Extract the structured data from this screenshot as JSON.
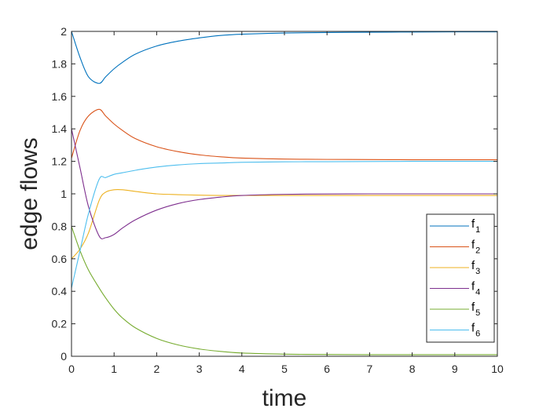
{
  "chart_data": {
    "type": "line",
    "title": "",
    "xlabel": "time",
    "ylabel": "edge flows",
    "xlim": [
      0,
      10
    ],
    "ylim": [
      0,
      2
    ],
    "xticks": [
      "0",
      "1",
      "2",
      "3",
      "4",
      "5",
      "6",
      "7",
      "8",
      "9",
      "10"
    ],
    "yticks": [
      "0",
      "0.2",
      "0.4",
      "0.6",
      "0.8",
      "1",
      "1.2",
      "1.4",
      "1.6",
      "1.8",
      "2"
    ],
    "grid": false,
    "legend_position": "southeast",
    "x": [
      0,
      0.2,
      0.4,
      0.65,
      0.8,
      1.0,
      1.2,
      1.5,
      2,
      2.5,
      3,
      3.5,
      4,
      5,
      6,
      7,
      8,
      9,
      10
    ],
    "series": [
      {
        "name": "f1",
        "label_main": "f",
        "label_sub": "1",
        "color": "#0072BD",
        "values": [
          2.0,
          1.84,
          1.72,
          1.68,
          1.72,
          1.77,
          1.81,
          1.86,
          1.91,
          1.94,
          1.96,
          1.975,
          1.983,
          1.99,
          1.993,
          1.995,
          1.996,
          1.997,
          1.997
        ]
      },
      {
        "name": "f2",
        "label_main": "f",
        "label_sub": "2",
        "color": "#D95319",
        "values": [
          1.22,
          1.39,
          1.48,
          1.52,
          1.48,
          1.43,
          1.39,
          1.34,
          1.29,
          1.26,
          1.24,
          1.228,
          1.22,
          1.214,
          1.212,
          1.211,
          1.21,
          1.21,
          1.21
        ]
      },
      {
        "name": "f3",
        "label_main": "f",
        "label_sub": "3",
        "color": "#EDB120",
        "values": [
          0.6,
          0.66,
          0.76,
          0.96,
          1.01,
          1.025,
          1.025,
          1.015,
          1.0,
          0.995,
          0.992,
          0.99,
          0.99,
          0.99,
          0.99,
          0.99,
          0.99,
          0.99,
          0.99
        ]
      },
      {
        "name": "f4",
        "label_main": "f",
        "label_sub": "4",
        "color": "#7E2F8E",
        "values": [
          1.4,
          1.16,
          0.92,
          0.74,
          0.73,
          0.75,
          0.79,
          0.84,
          0.9,
          0.94,
          0.965,
          0.98,
          0.99,
          0.997,
          0.999,
          1.0,
          1.0,
          1.0,
          1.0
        ]
      },
      {
        "name": "f5",
        "label_main": "f",
        "label_sub": "5",
        "color": "#77AC30",
        "values": [
          0.8,
          0.65,
          0.53,
          0.42,
          0.36,
          0.29,
          0.235,
          0.175,
          0.11,
          0.07,
          0.045,
          0.03,
          0.02,
          0.013,
          0.011,
          0.01,
          0.01,
          0.01,
          0.01
        ]
      },
      {
        "name": "f6",
        "label_main": "f",
        "label_sub": "6",
        "color": "#4DBEEE",
        "values": [
          0.42,
          0.65,
          0.88,
          1.09,
          1.1,
          1.12,
          1.13,
          1.145,
          1.165,
          1.178,
          1.186,
          1.19,
          1.194,
          1.197,
          1.198,
          1.199,
          1.2,
          1.2,
          1.2
        ]
      }
    ]
  }
}
